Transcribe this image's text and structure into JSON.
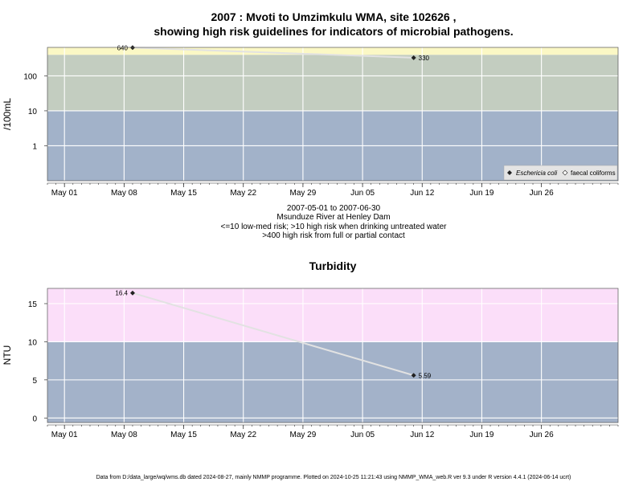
{
  "titles": {
    "main_line1": "2007 : Mvoti to Umzimkulu WMA, site 102626 ,",
    "main_line2": "showing high risk guidelines for indicators of microbial pathogens.",
    "turbidity": "Turbidity"
  },
  "notes": {
    "date_range": "2007-05-01 to 2007-06-30",
    "site_name": "Msunduze River at Henley Dam",
    "risk_line1": "<=10 low-med risk; >10 high risk when drinking untreated water",
    "risk_line2": ">400 high risk from full or partial contact"
  },
  "footer": "Data from D:/data_large/wq/wms.db dated 2024-08-27, mainly NMMP programme. Plotted on 2024-10-25 11:21:43 using NMMP_WMA_web.R ver 9.3 under R version 4.4.1 (2024-06-14 ucrt)",
  "colors": {
    "band_low": "#a2b2c9",
    "band_mid": "#c3cdc0",
    "band_high": "#fbf8c5",
    "turb_high": "#fbdef9",
    "turb_low": "#a3b2c9",
    "line": "#e2e2e2",
    "grid": "#ffffff"
  },
  "chart_data": [
    {
      "type": "scatter",
      "ylabel": "/100mL",
      "yscale": "log",
      "x_tick_labels": [
        "May 01",
        "May 08",
        "May 15",
        "May 22",
        "May 29",
        "Jun 05",
        "Jun 12",
        "Jun 19",
        "Jun 26"
      ],
      "x_ticks": [
        "2007-05-01",
        "2007-05-08",
        "2007-05-15",
        "2007-05-22",
        "2007-05-29",
        "2007-06-05",
        "2007-06-12",
        "2007-06-19",
        "2007-06-26"
      ],
      "xlim": [
        "2007-04-29",
        "2007-07-05"
      ],
      "y_ticks": [
        1,
        10,
        100
      ],
      "y_tick_labels": [
        "1",
        "10",
        "100"
      ],
      "ylim": [
        0.1,
        650
      ],
      "guideline_bands": [
        {
          "from": 0.1,
          "to": 10
        },
        {
          "from": 10,
          "to": 400
        },
        {
          "from": 400,
          "to": 650
        }
      ],
      "series": [
        {
          "name": "Eschericia coli",
          "marker": "filled-diamond",
          "points": [
            {
              "x": "2007-05-09",
              "y": 640,
              "label": "640"
            },
            {
              "x": "2007-06-11",
              "y": 330,
              "label": "330"
            }
          ]
        },
        {
          "name": "faecal coliforms",
          "marker": "open-diamond",
          "points": []
        }
      ],
      "legend": "bottom-right"
    },
    {
      "type": "scatter",
      "title": "Turbidity",
      "ylabel": "NTU",
      "x_tick_labels": [
        "May 01",
        "May 08",
        "May 15",
        "May 22",
        "May 29",
        "Jun 05",
        "Jun 12",
        "Jun 19",
        "Jun 26"
      ],
      "x_ticks": [
        "2007-05-01",
        "2007-05-08",
        "2007-05-15",
        "2007-05-22",
        "2007-05-29",
        "2007-06-05",
        "2007-06-12",
        "2007-06-19",
        "2007-06-26"
      ],
      "xlim": [
        "2007-04-29",
        "2007-07-05"
      ],
      "y_ticks": [
        0,
        5,
        10,
        15
      ],
      "y_tick_labels": [
        "0",
        "5",
        "10",
        "15"
      ],
      "ylim": [
        -0.6,
        17
      ],
      "guideline_bands": [
        {
          "from": -0.6,
          "to": 10
        },
        {
          "from": 10,
          "to": 17
        }
      ],
      "series": [
        {
          "marker": "filled-diamond",
          "points": [
            {
              "x": "2007-05-09",
              "y": 16.4,
              "label": "16.4"
            },
            {
              "x": "2007-06-11",
              "y": 5.59,
              "label": "5.59"
            }
          ]
        }
      ]
    }
  ]
}
